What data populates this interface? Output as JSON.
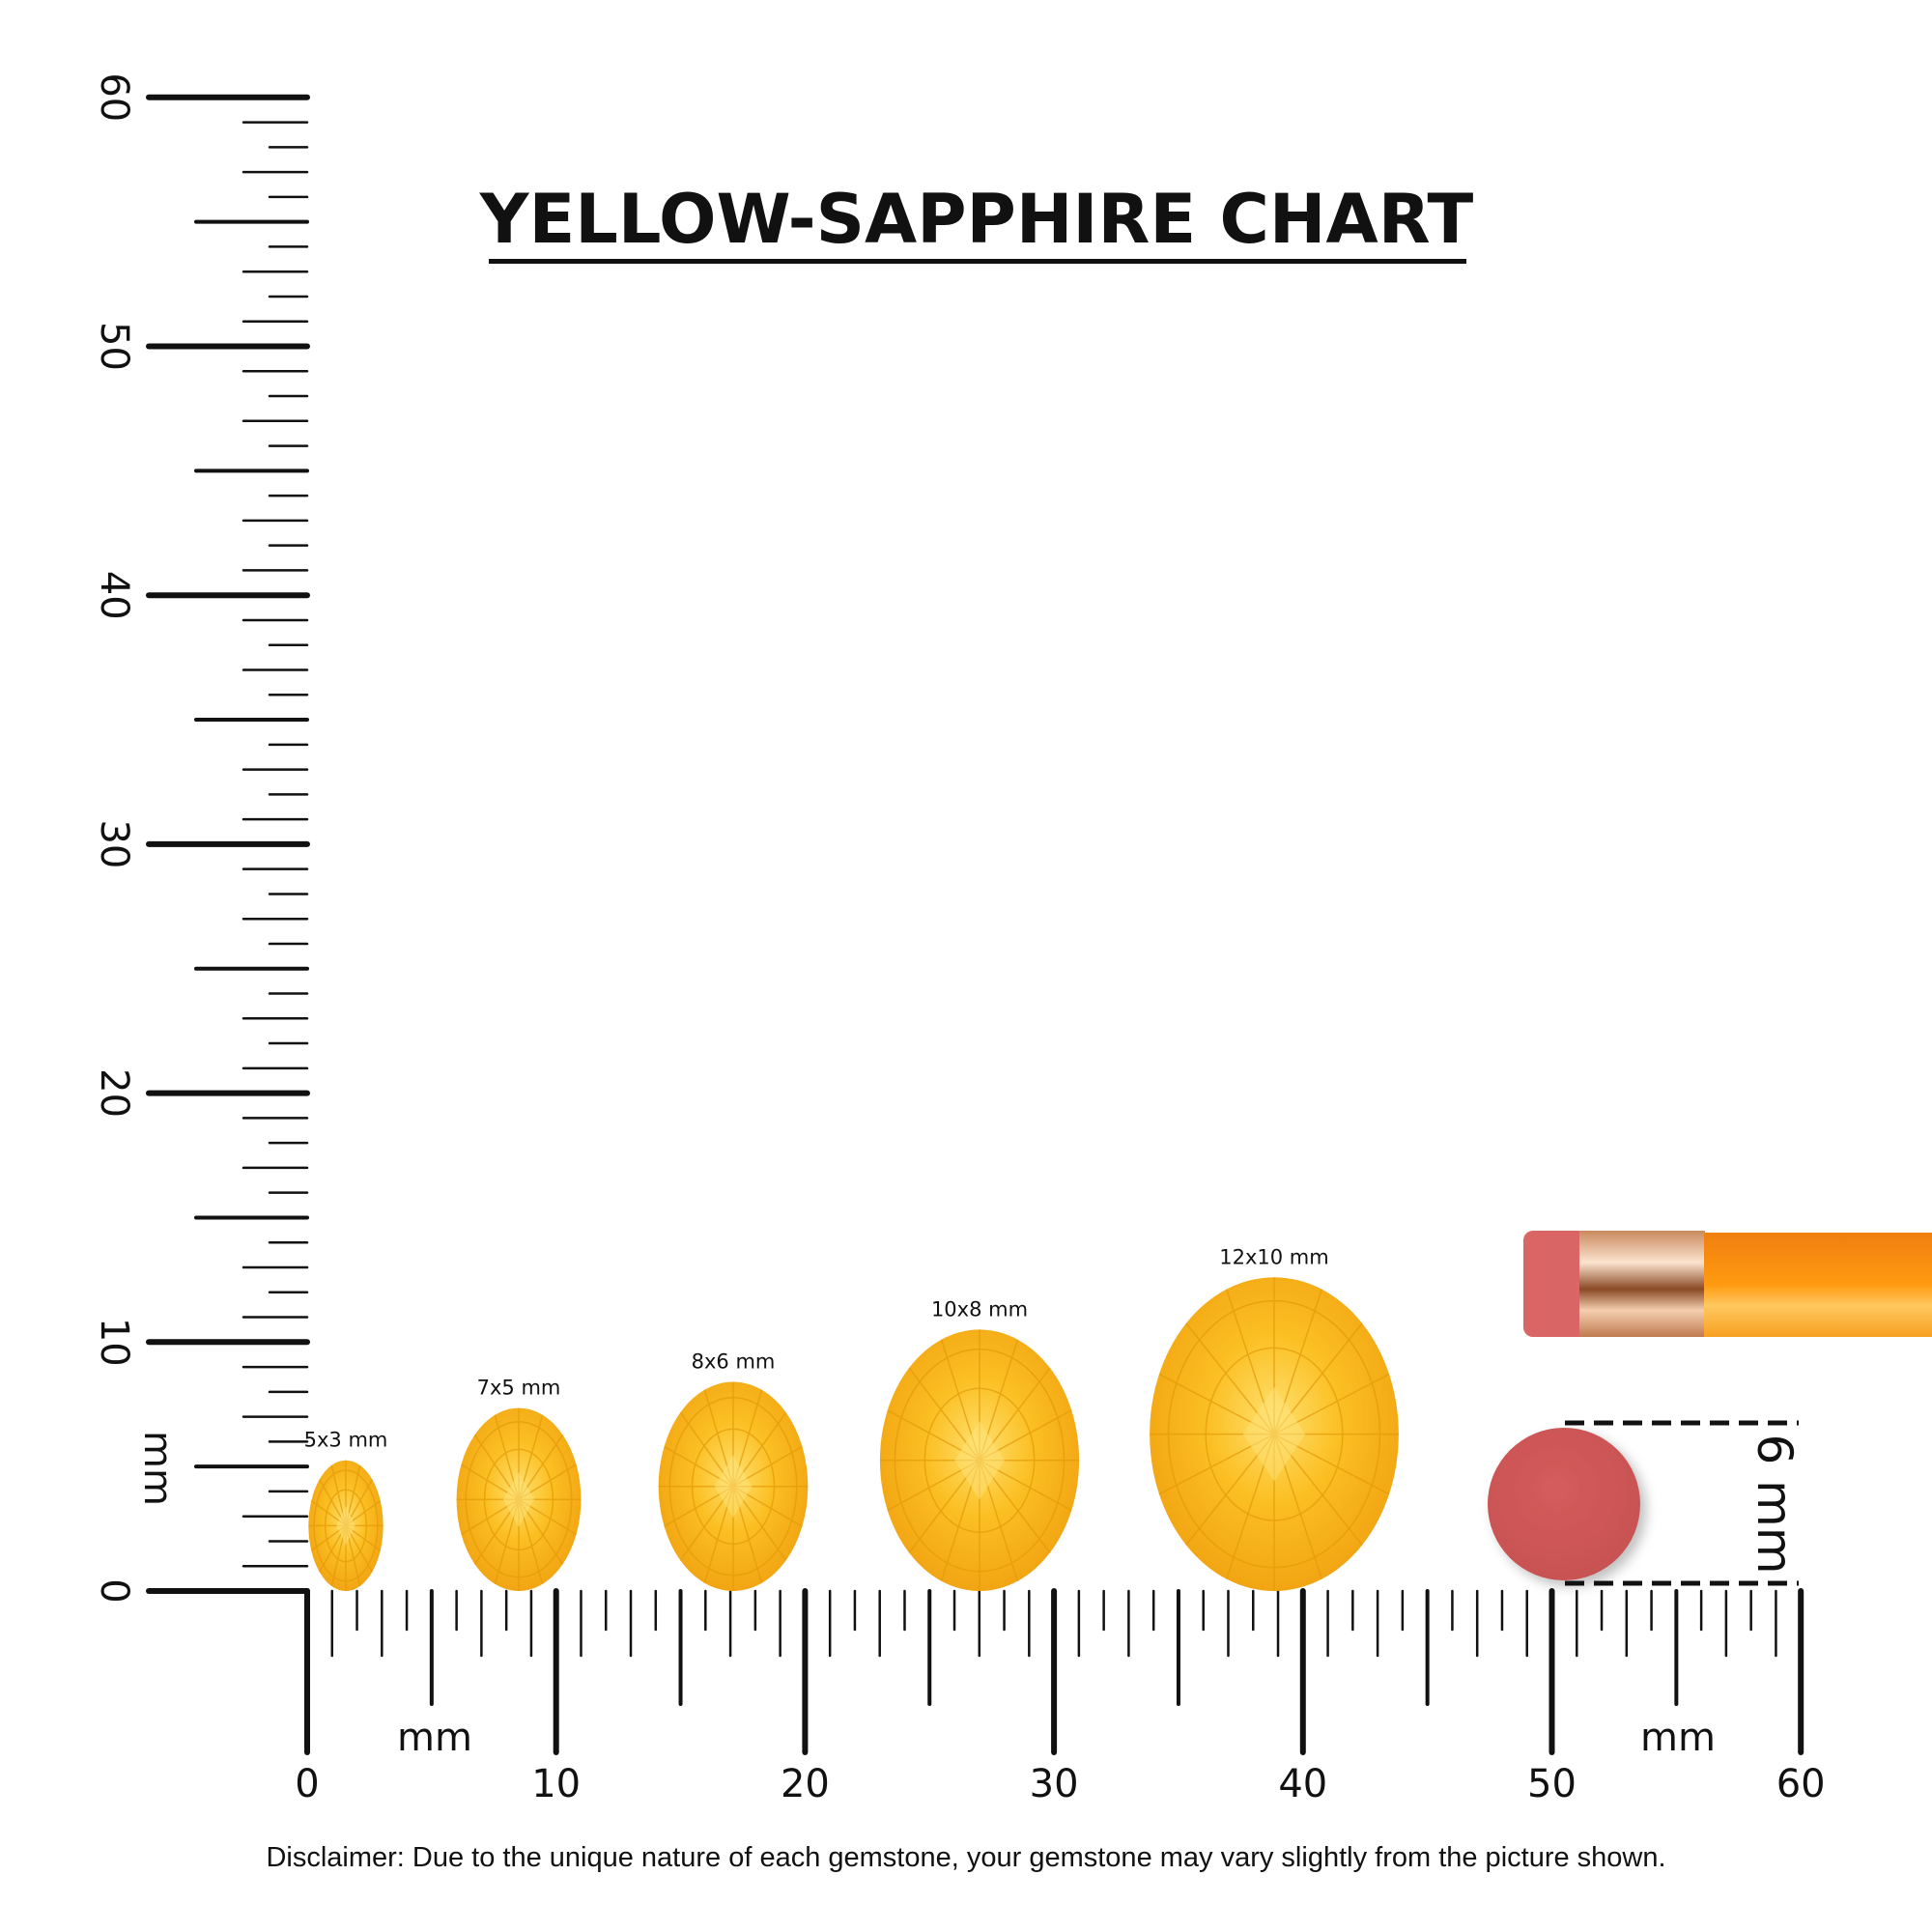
{
  "title": "YELLOW-SAPPHIRE CHART",
  "unit_label": "mm",
  "ruler": {
    "min": 0,
    "max": 60,
    "tick_labels": [
      "0",
      "10",
      "20",
      "30",
      "40",
      "50",
      "60"
    ]
  },
  "gems": [
    {
      "label": "5x3 mm",
      "length_mm": 5,
      "width_mm": 3
    },
    {
      "label": "7x5 mm",
      "length_mm": 7,
      "width_mm": 5
    },
    {
      "label": "8x6 mm",
      "length_mm": 8,
      "width_mm": 6
    },
    {
      "label": "10x8 mm",
      "length_mm": 10,
      "width_mm": 8
    },
    {
      "label": "12x10 mm",
      "length_mm": 12,
      "width_mm": 10
    }
  ],
  "reference": {
    "label": "6 mm",
    "object": "pencil eraser"
  },
  "colors": {
    "gem": "#f8b41c",
    "gem_light": "#ffd75a",
    "gem_dark": "#e89a0a",
    "eraser": "#d45a5a",
    "pencil": "#f7941d",
    "ferrule": "#e6b48c"
  },
  "disclaimer": "Disclaimer: Due to the unique nature of each gemstone, your gemstone may vary slightly from the picture shown."
}
